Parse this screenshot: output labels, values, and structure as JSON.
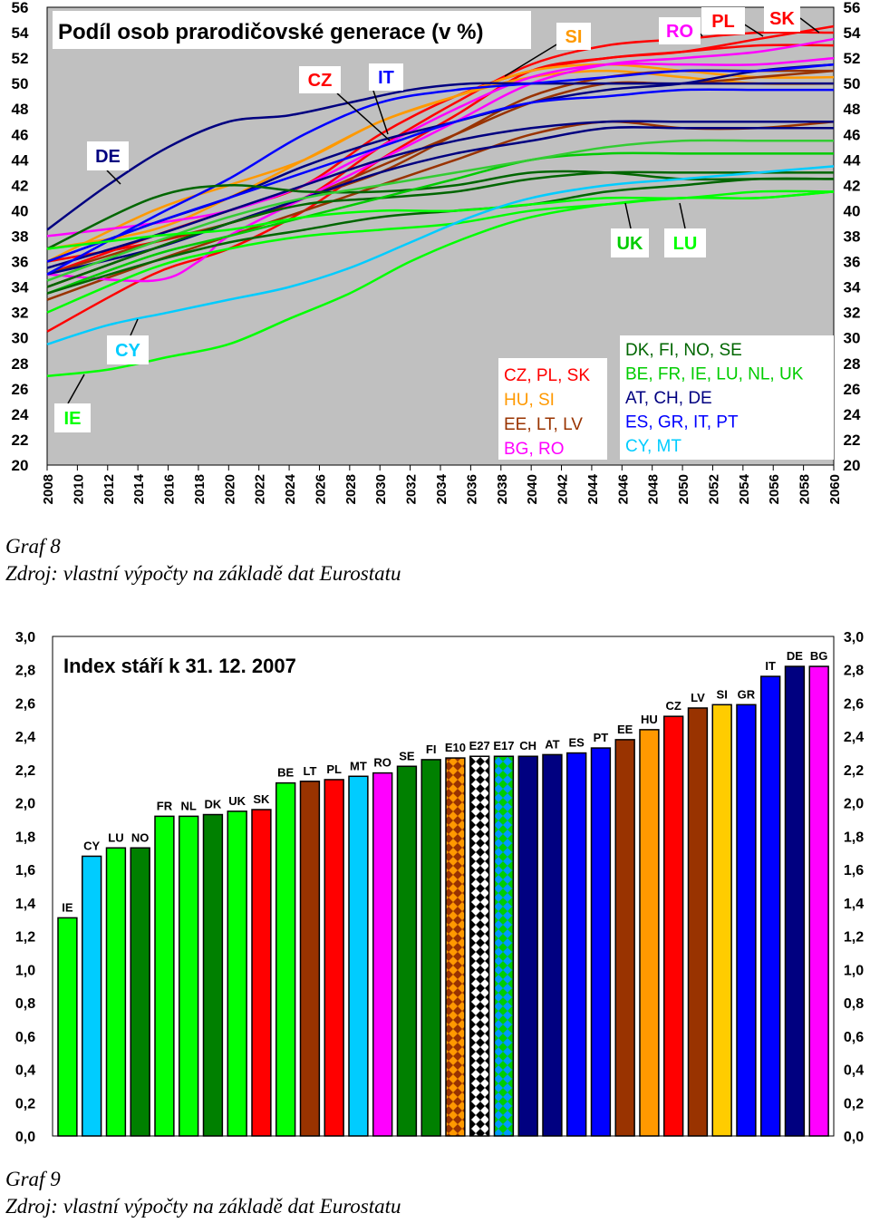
{
  "chart_data": [
    {
      "type": "line",
      "title": "Podíl osob prarodičovské generace (v %)",
      "xlabel": "",
      "ylabel": "",
      "x_range": [
        2008,
        2060
      ],
      "ylim": [
        20,
        56
      ],
      "x_ticks": [
        "2008",
        "2010",
        "2012",
        "2014",
        "2016",
        "2018",
        "2020",
        "2022",
        "2024",
        "2026",
        "2028",
        "2030",
        "2032",
        "2034",
        "2036",
        "2038",
        "2040",
        "2042",
        "2044",
        "2046",
        "2048",
        "2050",
        "2052",
        "2054",
        "2056",
        "2058",
        "2060"
      ],
      "y_ticks": [
        "20",
        "22",
        "24",
        "26",
        "28",
        "30",
        "32",
        "34",
        "36",
        "38",
        "40",
        "42",
        "44",
        "46",
        "48",
        "50",
        "52",
        "54",
        "56"
      ],
      "grid": false,
      "background": "#c0c0c0",
      "series": [
        {
          "color": "#ff0000",
          "x": [
            2008,
            2015,
            2020,
            2025,
            2030,
            2035,
            2040,
            2045,
            2050,
            2055,
            2060
          ],
          "values": [
            30.5,
            35,
            37,
            40,
            44,
            47.5,
            51,
            52,
            52.5,
            53.5,
            54.5
          ]
        },
        {
          "color": "#ff0000",
          "x": [
            2008,
            2015,
            2020,
            2025,
            2030,
            2035,
            2040,
            2045,
            2050,
            2055,
            2060
          ],
          "values": [
            36,
            37.5,
            39,
            41,
            45,
            48.5,
            51.5,
            53,
            53.5,
            54,
            54
          ]
        },
        {
          "color": "#ff0000",
          "x": [
            2008,
            2015,
            2020,
            2025,
            2030,
            2035,
            2040,
            2045,
            2050,
            2055,
            2060
          ],
          "values": [
            35,
            38,
            40,
            42,
            46,
            49,
            51,
            52,
            52.5,
            53,
            53
          ]
        },
        {
          "color": "#ff9900",
          "x": [
            2008,
            2015,
            2020,
            2025,
            2030,
            2035,
            2040,
            2045,
            2050,
            2055,
            2060
          ],
          "values": [
            36,
            40,
            42,
            44,
            47,
            49,
            51,
            51.5,
            51,
            50.5,
            50.5
          ]
        },
        {
          "color": "#ff9900",
          "x": [
            2008,
            2015,
            2020,
            2025,
            2030,
            2035,
            2040,
            2045,
            2050,
            2055,
            2060
          ],
          "values": [
            37,
            38.5,
            41,
            44,
            47,
            49,
            50.5,
            51,
            50.5,
            50,
            50
          ]
        },
        {
          "color": "#993300",
          "x": [
            2008,
            2015,
            2020,
            2025,
            2030,
            2035,
            2040,
            2045,
            2050,
            2055,
            2060
          ],
          "values": [
            33,
            36,
            38,
            40,
            42,
            44,
            46,
            47,
            46.5,
            46.5,
            47
          ]
        },
        {
          "color": "#993300",
          "x": [
            2008,
            2015,
            2020,
            2025,
            2030,
            2035,
            2040,
            2045,
            2050,
            2055,
            2060
          ],
          "values": [
            34,
            37,
            39,
            41,
            43,
            46,
            49,
            50.5,
            51,
            51,
            51
          ]
        },
        {
          "color": "#993300",
          "x": [
            2008,
            2015,
            2020,
            2025,
            2030,
            2035,
            2040,
            2045,
            2050,
            2055,
            2060
          ],
          "values": [
            35,
            37.5,
            39,
            41,
            43.5,
            46,
            48.5,
            50,
            50,
            50.5,
            51
          ]
        },
        {
          "color": "#ff00ff",
          "x": [
            2008,
            2015,
            2018,
            2020,
            2025,
            2030,
            2035,
            2040,
            2045,
            2050,
            2055,
            2060
          ],
          "values": [
            35,
            34.5,
            36,
            38,
            41,
            44,
            47,
            50,
            51.5,
            52,
            52.5,
            53.5
          ]
        },
        {
          "color": "#ff00ff",
          "x": [
            2008,
            2015,
            2020,
            2025,
            2030,
            2035,
            2040,
            2045,
            2050,
            2055,
            2060
          ],
          "values": [
            38,
            39,
            40,
            42,
            45,
            48,
            50.5,
            51.5,
            51.5,
            51.5,
            52
          ]
        },
        {
          "color": "#000080",
          "x": [
            2008,
            2012,
            2016,
            2020,
            2024,
            2028,
            2032,
            2036,
            2040,
            2045,
            2050,
            2055,
            2060
          ],
          "values": [
            38.5,
            42,
            45,
            47,
            47.5,
            48.5,
            49.5,
            50,
            50,
            50,
            50,
            50,
            50
          ]
        },
        {
          "color": "#000080",
          "x": [
            2008,
            2015,
            2020,
            2025,
            2030,
            2035,
            2040,
            2045,
            2050,
            2055,
            2060
          ],
          "values": [
            36,
            39,
            41,
            43.5,
            45.5,
            47,
            48.5,
            49.5,
            50,
            51,
            51.5
          ]
        },
        {
          "color": "#000080",
          "x": [
            2008,
            2015,
            2020,
            2025,
            2030,
            2035,
            2040,
            2045,
            2050,
            2055,
            2060
          ],
          "values": [
            35,
            37,
            39,
            41,
            43,
            44.5,
            45.5,
            46.5,
            46.5,
            46.5,
            46.5
          ]
        },
        {
          "color": "#000080",
          "x": [
            2008,
            2015,
            2020,
            2025,
            2030,
            2035,
            2040,
            2045,
            2050,
            2055,
            2060
          ],
          "values": [
            35.5,
            38,
            40,
            42,
            44,
            45.5,
            46.5,
            47,
            47,
            47,
            47
          ]
        },
        {
          "color": "#0000ff",
          "x": [
            2008,
            2015,
            2020,
            2025,
            2030,
            2035,
            2040,
            2045,
            2050,
            2055,
            2060
          ],
          "values": [
            35,
            39.5,
            42.5,
            46,
            48.5,
            49.5,
            50,
            50.5,
            51,
            51,
            51.5
          ]
        },
        {
          "color": "#0000ff",
          "x": [
            2008,
            2015,
            2020,
            2025,
            2030,
            2035,
            2040,
            2045,
            2050,
            2055,
            2060
          ],
          "values": [
            36,
            39,
            41,
            43,
            45,
            47,
            48.5,
            49,
            49.5,
            49.5,
            49.5
          ]
        },
        {
          "color": "#006600",
          "x": [
            2008,
            2015,
            2020,
            2025,
            2030,
            2035,
            2040,
            2045,
            2050,
            2055,
            2060
          ],
          "values": [
            37,
            41,
            42,
            41.5,
            41.5,
            42,
            43,
            43,
            42.5,
            42.5,
            42.5
          ]
        },
        {
          "color": "#006600",
          "x": [
            2008,
            2015,
            2020,
            2025,
            2030,
            2035,
            2040,
            2045,
            2050,
            2055,
            2060
          ],
          "values": [
            34,
            37,
            39,
            40.5,
            41,
            41.5,
            42.5,
            43,
            43,
            43,
            43
          ]
        },
        {
          "color": "#00cc00",
          "x": [
            2008,
            2015,
            2020,
            2025,
            2030,
            2035,
            2040,
            2045,
            2050,
            2055,
            2060
          ],
          "values": [
            33.5,
            36.5,
            38,
            39.5,
            41,
            42.5,
            44,
            44.5,
            44.5,
            44.5,
            44.5
          ]
        },
        {
          "color": "#33cc33",
          "x": [
            2008,
            2015,
            2020,
            2025,
            2030,
            2035,
            2040,
            2045,
            2050,
            2055,
            2060
          ],
          "values": [
            34.5,
            37.5,
            39.5,
            41,
            42,
            43,
            44,
            45,
            45.5,
            45.5,
            45.5
          ]
        },
        {
          "color": "#006600",
          "x": [
            2008,
            2015,
            2020,
            2025,
            2030,
            2035,
            2040,
            2045,
            2050,
            2055,
            2060
          ],
          "values": [
            33.5,
            36,
            37.5,
            38.5,
            39.5,
            40,
            40.5,
            41.5,
            42,
            42.5,
            42.5
          ]
        },
        {
          "color": "#00ff00",
          "x": [
            2008,
            2015,
            2020,
            2025,
            2030,
            2035,
            2040,
            2045,
            2050,
            2055,
            2060
          ],
          "values": [
            32,
            35.5,
            37,
            38,
            38.5,
            39,
            40,
            40.5,
            41,
            41,
            41.5
          ]
        },
        {
          "color": "#00ff00",
          "x": [
            2008,
            2015,
            2020,
            2025,
            2030,
            2035,
            2040,
            2045,
            2050,
            2055,
            2060
          ],
          "values": [
            37,
            38,
            38.5,
            39.5,
            40,
            40,
            40.5,
            41,
            41,
            41.5,
            41.5
          ]
        },
        {
          "color": "#00ff00",
          "x": [
            2008,
            2012,
            2016,
            2020,
            2024,
            2028,
            2032,
            2036,
            2040,
            2045,
            2050,
            2055,
            2060
          ],
          "values": [
            27,
            27.5,
            28.5,
            29.5,
            31.5,
            33.5,
            36,
            38,
            39.5,
            40.5,
            41,
            41,
            41.5
          ]
        },
        {
          "color": "#00ccff",
          "x": [
            2008,
            2012,
            2016,
            2020,
            2024,
            2028,
            2032,
            2036,
            2040,
            2045,
            2050,
            2055,
            2060
          ],
          "values": [
            29.5,
            31,
            32,
            33,
            34,
            35.5,
            37.5,
            39.5,
            41,
            42,
            42.5,
            43,
            43.5
          ]
        }
      ],
      "annotations": [
        {
          "text": "SK",
          "color": "#ff0000"
        },
        {
          "text": "PL",
          "color": "#ff0000"
        },
        {
          "text": "RO",
          "color": "#ff00ff"
        },
        {
          "text": "SI",
          "color": "#ff9900"
        },
        {
          "text": "IT",
          "color": "#0000ff"
        },
        {
          "text": "CZ",
          "color": "#ff0000"
        },
        {
          "text": "DE",
          "color": "#000080"
        },
        {
          "text": "CY",
          "color": "#00ccff"
        },
        {
          "text": "IE",
          "color": "#00ff00"
        },
        {
          "text": "UK",
          "color": "#00cc00"
        },
        {
          "text": "LU",
          "color": "#00ff00"
        }
      ],
      "legend": {
        "placement": "bottom-right",
        "groups": [
          {
            "text": "CZ, PL, SK",
            "color": "#ff0000"
          },
          {
            "text": "HU, SI",
            "color": "#ff9900"
          },
          {
            "text": "EE, LT, LV",
            "color": "#993300"
          },
          {
            "text": "BG, RO",
            "color": "#ff00ff"
          },
          {
            "text": "DK, FI, NO, SE",
            "color": "#006600"
          },
          {
            "text": "BE, FR, IE, LU, NL, UK",
            "color": "#00cc00"
          },
          {
            "text": "AT, CH, DE",
            "color": "#000080"
          },
          {
            "text": "ES, GR, IT, PT",
            "color": "#0000ff"
          },
          {
            "text": "CY, MT",
            "color": "#00ccff"
          }
        ]
      }
    },
    {
      "type": "bar",
      "title": "Index stáří k 31. 12. 2007",
      "xlabel": "",
      "ylabel": "",
      "ylim": [
        0,
        3
      ],
      "y_ticks": [
        "0,0",
        "0,2",
        "0,4",
        "0,6",
        "0,8",
        "1,0",
        "1,2",
        "1,4",
        "1,6",
        "1,8",
        "2,0",
        "2,2",
        "2,4",
        "2,6",
        "2,8",
        "3,0"
      ],
      "grid": false,
      "categories": [
        "IE",
        "CY",
        "LU",
        "NO",
        "FR",
        "NL",
        "DK",
        "UK",
        "SK",
        "BE",
        "LT",
        "PL",
        "MT",
        "RO",
        "SE",
        "FI",
        "E10",
        "E27",
        "E17",
        "CH",
        "AT",
        "ES",
        "PT",
        "EE",
        "HU",
        "CZ",
        "LV",
        "SI",
        "GR",
        "IT",
        "DE",
        "BG"
      ],
      "values": [
        1.31,
        1.68,
        1.73,
        1.73,
        1.92,
        1.92,
        1.93,
        1.95,
        1.96,
        2.12,
        2.13,
        2.14,
        2.16,
        2.18,
        2.22,
        2.26,
        2.27,
        2.28,
        2.28,
        2.28,
        2.29,
        2.3,
        2.33,
        2.38,
        2.44,
        2.52,
        2.57,
        2.59,
        2.59,
        2.76,
        2.82,
        2.82
      ],
      "colors": [
        "#00ff00",
        "#00ccff",
        "#00ff00",
        "#008000",
        "#00ff00",
        "#00ff00",
        "#008000",
        "#00ff00",
        "#ff0000",
        "#00ff00",
        "#993300",
        "#ff0000",
        "#00ccff",
        "#ff00ff",
        "#008000",
        "#008000",
        "#ff9900",
        "#000000",
        "#0099ff",
        "#000080",
        "#000080",
        "#0000ff",
        "#0000ff",
        "#993300",
        "#ff9900",
        "#ff0000",
        "#993300",
        "#ffcc00",
        "#0000ff",
        "#0000ff",
        "#000080",
        "#ff00ff"
      ],
      "patterns": [
        "",
        "",
        "",
        "",
        "",
        "",
        "",
        "",
        "",
        "",
        "",
        "",
        "",
        "",
        "",
        "",
        "diamond",
        "diamond",
        "diamond",
        "",
        "",
        "",
        "",
        "",
        "",
        "",
        "",
        "",
        "",
        "",
        "",
        ""
      ],
      "pattern_colors": [
        "",
        "",
        "",
        "",
        "",
        "",
        "",
        "",
        "",
        "",
        "",
        "",
        "",
        "",
        "",
        "",
        "#993300",
        "#ffffff",
        "#00cc00",
        "",
        "",
        "",
        "",
        "",
        "",
        "",
        "",
        "",
        "",
        "",
        "",
        ""
      ]
    }
  ],
  "captions": {
    "chart1_label": "Graf 8",
    "chart1_source": "Zdroj: vlastní výpočty na základě dat Eurostatu",
    "chart2_label": "Graf 9",
    "chart2_source": "Zdroj: vlastní výpočty na základě dat Eurostatu"
  }
}
